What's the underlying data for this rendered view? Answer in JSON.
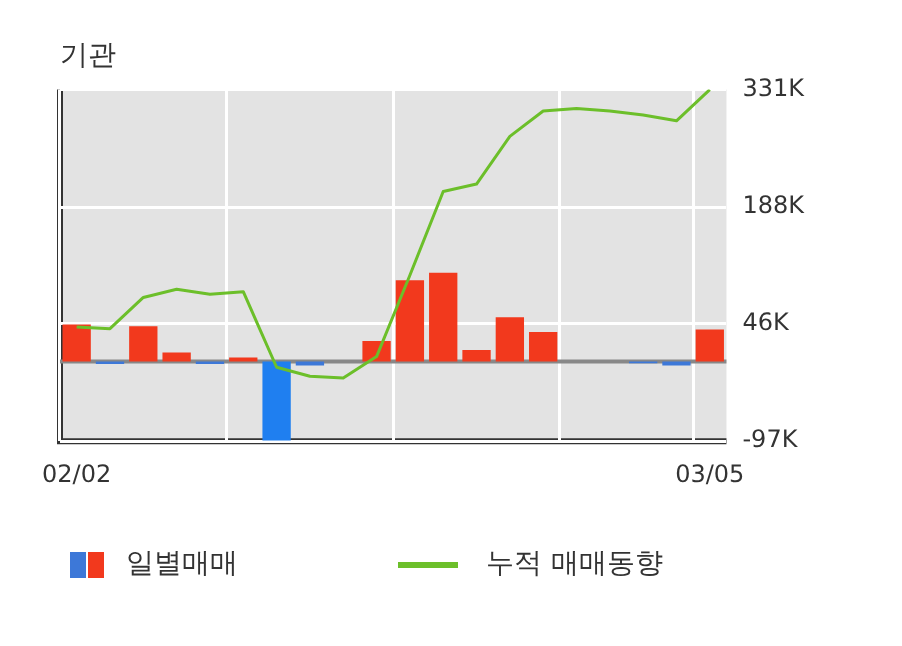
{
  "chart_data": {
    "type": "bar",
    "title": "기관",
    "categories": [
      "02/02",
      null,
      null,
      null,
      null,
      null,
      null,
      null,
      null,
      null,
      null,
      null,
      null,
      null,
      null,
      null,
      null,
      null,
      null,
      "03/05"
    ],
    "series": [
      {
        "name": "일별매매",
        "colors": [
          "#f2391d",
          "#3d78d8",
          "#f2391d",
          "#f2391d",
          "#3d78d8",
          "#f2391d",
          "#1f7ff0",
          "#3d78d8",
          "#f2391d",
          "#f2391d",
          "#f2391d",
          "#f2391d",
          "#f2391d",
          "#f2391d",
          "#f2391d",
          "#f2391d",
          "#f2391d",
          "#3d78d8",
          "#3d78d8",
          "#f2391d"
        ],
        "values": [
          45000,
          -3000,
          43000,
          11000,
          -3000,
          5000,
          -96000,
          -5000,
          0,
          25000,
          99000,
          108000,
          14000,
          54000,
          36000,
          0,
          0,
          -2000,
          -5000,
          39000
        ]
      },
      {
        "name": "누적 매매동향",
        "type": "line",
        "color": "#6cbf2a",
        "values": [
          42000,
          40000,
          78000,
          88000,
          82000,
          85000,
          -7000,
          -18000,
          -20000,
          6000,
          105000,
          207000,
          216000,
          274000,
          305000,
          308000,
          305000,
          300000,
          293000,
          331000
        ]
      }
    ],
    "ylim": [
      -97000,
      331000
    ],
    "yticks": [
      {
        "value": -97000,
        "label": "-97K"
      },
      {
        "value": 46000,
        "label": "46K"
      },
      {
        "value": 188000,
        "label": "188K"
      },
      {
        "value": 331000,
        "label": "331K"
      }
    ],
    "ref_lines": [
      {
        "axis": "y",
        "value": 0,
        "color": "#888888"
      }
    ],
    "grid": true,
    "legend": "bottom"
  }
}
